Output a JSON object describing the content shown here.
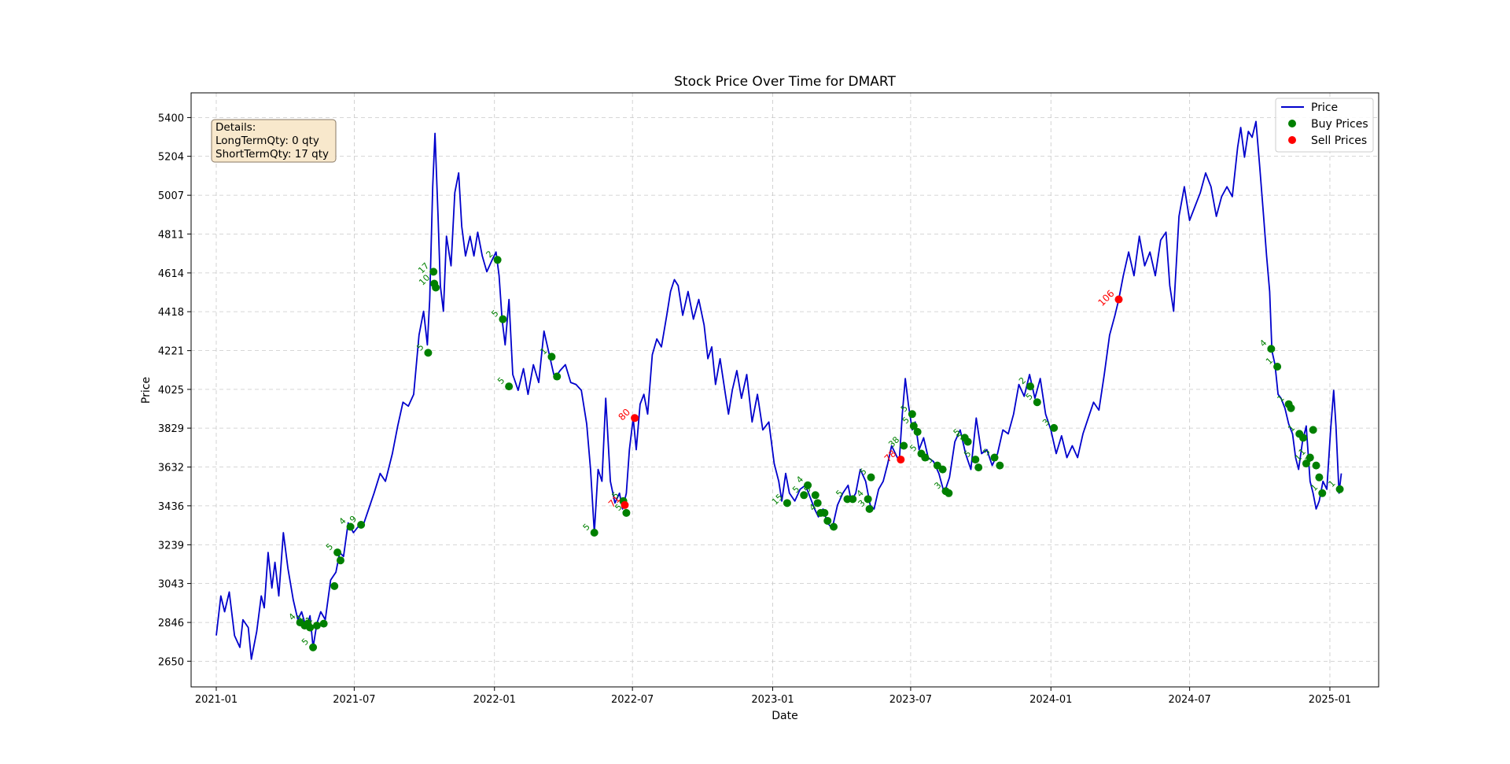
{
  "chart_data": {
    "type": "line",
    "title": "Stock Price Over Time for DMART",
    "xlabel": "Date",
    "ylabel": "Price",
    "x_ticks": [
      "2021-01",
      "2021-07",
      "2022-01",
      "2022-07",
      "2023-01",
      "2023-07",
      "2024-01",
      "2024-07",
      "2025-01"
    ],
    "y_ticks": [
      2650,
      2846,
      3043,
      3239,
      3436,
      3632,
      3829,
      4025,
      4221,
      4418,
      4614,
      4811,
      5007,
      5204,
      5400
    ],
    "xlim": [
      "2020-11-29",
      "2025-03-06"
    ],
    "ylim": [
      2520,
      5525
    ],
    "grid": true,
    "grid_style": "dashed",
    "legend_position": "top-right",
    "legend": [
      {
        "label": "Price",
        "kind": "line",
        "color": "#0000cc"
      },
      {
        "label": "Buy Prices",
        "kind": "marker",
        "color": "#008000"
      },
      {
        "label": "Sell Prices",
        "kind": "marker",
        "color": "#ff0000"
      }
    ],
    "colors": {
      "price_line": "#0000cc",
      "buy": "#008000",
      "sell": "#ff0000",
      "info_box_bg": "#f8e8cc",
      "info_box_border": "#8a7a66"
    },
    "info_box": {
      "heading": "Details:",
      "lines": [
        "LongTermQty: 0 qty",
        "ShortTermQty: 17 qty"
      ]
    },
    "price_series": [
      [
        "2021-01-01",
        2780
      ],
      [
        "2021-01-07",
        2980
      ],
      [
        "2021-01-12",
        2900
      ],
      [
        "2021-01-18",
        3000
      ],
      [
        "2021-01-25",
        2780
      ],
      [
        "2021-02-01",
        2720
      ],
      [
        "2021-02-05",
        2860
      ],
      [
        "2021-02-12",
        2820
      ],
      [
        "2021-02-16",
        2660
      ],
      [
        "2021-02-23",
        2800
      ],
      [
        "2021-03-01",
        2980
      ],
      [
        "2021-03-05",
        2920
      ],
      [
        "2021-03-10",
        3200
      ],
      [
        "2021-03-15",
        3020
      ],
      [
        "2021-03-19",
        3150
      ],
      [
        "2021-03-24",
        2980
      ],
      [
        "2021-03-30",
        3300
      ],
      [
        "2021-04-05",
        3120
      ],
      [
        "2021-04-12",
        2960
      ],
      [
        "2021-04-18",
        2860
      ],
      [
        "2021-04-23",
        2900
      ],
      [
        "2021-04-29",
        2820
      ],
      [
        "2021-05-04",
        2880
      ],
      [
        "2021-05-08",
        2720
      ],
      [
        "2021-05-13",
        2840
      ],
      [
        "2021-05-18",
        2900
      ],
      [
        "2021-05-24",
        2860
      ],
      [
        "2021-05-31",
        3060
      ],
      [
        "2021-06-07",
        3100
      ],
      [
        "2021-06-12",
        3200
      ],
      [
        "2021-06-17",
        3180
      ],
      [
        "2021-06-23",
        3350
      ],
      [
        "2021-06-30",
        3300
      ],
      [
        "2021-07-06",
        3330
      ],
      [
        "2021-07-13",
        3340
      ],
      [
        "2021-07-20",
        3420
      ],
      [
        "2021-07-27",
        3500
      ],
      [
        "2021-08-04",
        3600
      ],
      [
        "2021-08-11",
        3560
      ],
      [
        "2021-08-20",
        3700
      ],
      [
        "2021-08-27",
        3840
      ],
      [
        "2021-09-03",
        3960
      ],
      [
        "2021-09-10",
        3940
      ],
      [
        "2021-09-17",
        4000
      ],
      [
        "2021-09-24",
        4300
      ],
      [
        "2021-09-30",
        4420
      ],
      [
        "2021-10-05",
        4250
      ],
      [
        "2021-10-08",
        4480
      ],
      [
        "2021-10-12",
        5050
      ],
      [
        "2021-10-15",
        5320
      ],
      [
        "2021-10-19",
        4900
      ],
      [
        "2021-10-22",
        4550
      ],
      [
        "2021-10-26",
        4420
      ],
      [
        "2021-10-30",
        4800
      ],
      [
        "2021-11-05",
        4650
      ],
      [
        "2021-11-10",
        5020
      ],
      [
        "2021-11-15",
        5120
      ],
      [
        "2021-11-19",
        4850
      ],
      [
        "2021-11-24",
        4700
      ],
      [
        "2021-11-30",
        4800
      ],
      [
        "2021-12-05",
        4700
      ],
      [
        "2021-12-10",
        4820
      ],
      [
        "2021-12-16",
        4700
      ],
      [
        "2021-12-22",
        4620
      ],
      [
        "2021-12-29",
        4680
      ],
      [
        "2022-01-03",
        4720
      ],
      [
        "2022-01-07",
        4600
      ],
      [
        "2022-01-11",
        4380
      ],
      [
        "2022-01-15",
        4250
      ],
      [
        "2022-01-20",
        4480
      ],
      [
        "2022-01-25",
        4100
      ],
      [
        "2022-02-01",
        4020
      ],
      [
        "2022-02-08",
        4130
      ],
      [
        "2022-02-14",
        4000
      ],
      [
        "2022-02-21",
        4150
      ],
      [
        "2022-02-28",
        4060
      ],
      [
        "2022-03-07",
        4320
      ],
      [
        "2022-03-14",
        4200
      ],
      [
        "2022-03-21",
        4080
      ],
      [
        "2022-03-28",
        4120
      ],
      [
        "2022-04-04",
        4150
      ],
      [
        "2022-04-11",
        4060
      ],
      [
        "2022-04-18",
        4050
      ],
      [
        "2022-04-25",
        4020
      ],
      [
        "2022-05-02",
        3850
      ],
      [
        "2022-05-07",
        3620
      ],
      [
        "2022-05-12",
        3300
      ],
      [
        "2022-05-17",
        3620
      ],
      [
        "2022-05-22",
        3560
      ],
      [
        "2022-05-27",
        3980
      ],
      [
        "2022-06-02",
        3560
      ],
      [
        "2022-06-08",
        3450
      ],
      [
        "2022-06-14",
        3500
      ],
      [
        "2022-06-18",
        3420
      ],
      [
        "2022-06-23",
        3500
      ],
      [
        "2022-06-27",
        3720
      ],
      [
        "2022-07-02",
        3880
      ],
      [
        "2022-07-06",
        3720
      ],
      [
        "2022-07-11",
        3950
      ],
      [
        "2022-07-16",
        4000
      ],
      [
        "2022-07-21",
        3900
      ],
      [
        "2022-07-27",
        4200
      ],
      [
        "2022-08-02",
        4280
      ],
      [
        "2022-08-08",
        4240
      ],
      [
        "2022-08-15",
        4400
      ],
      [
        "2022-08-20",
        4520
      ],
      [
        "2022-08-25",
        4580
      ],
      [
        "2022-08-30",
        4550
      ],
      [
        "2022-09-05",
        4400
      ],
      [
        "2022-09-12",
        4520
      ],
      [
        "2022-09-19",
        4380
      ],
      [
        "2022-09-26",
        4480
      ],
      [
        "2022-10-03",
        4350
      ],
      [
        "2022-10-08",
        4180
      ],
      [
        "2022-10-13",
        4240
      ],
      [
        "2022-10-18",
        4050
      ],
      [
        "2022-10-24",
        4180
      ],
      [
        "2022-10-31",
        4000
      ],
      [
        "2022-11-04",
        3900
      ],
      [
        "2022-11-09",
        4020
      ],
      [
        "2022-11-15",
        4120
      ],
      [
        "2022-11-21",
        3980
      ],
      [
        "2022-11-28",
        4100
      ],
      [
        "2022-12-05",
        3860
      ],
      [
        "2022-12-12",
        4000
      ],
      [
        "2022-12-19",
        3820
      ],
      [
        "2022-12-27",
        3860
      ],
      [
        "2023-01-03",
        3650
      ],
      [
        "2023-01-09",
        3560
      ],
      [
        "2023-01-13",
        3460
      ],
      [
        "2023-01-18",
        3600
      ],
      [
        "2023-01-23",
        3500
      ],
      [
        "2023-01-30",
        3460
      ],
      [
        "2023-02-06",
        3520
      ],
      [
        "2023-02-13",
        3540
      ],
      [
        "2023-02-20",
        3470
      ],
      [
        "2023-02-25",
        3420
      ],
      [
        "2023-03-02",
        3380
      ],
      [
        "2023-03-08",
        3420
      ],
      [
        "2023-03-14",
        3350
      ],
      [
        "2023-03-20",
        3320
      ],
      [
        "2023-03-27",
        3440
      ],
      [
        "2023-04-03",
        3500
      ],
      [
        "2023-04-10",
        3540
      ],
      [
        "2023-04-14",
        3460
      ],
      [
        "2023-04-20",
        3500
      ],
      [
        "2023-04-26",
        3620
      ],
      [
        "2023-05-03",
        3560
      ],
      [
        "2023-05-09",
        3440
      ],
      [
        "2023-05-14",
        3420
      ],
      [
        "2023-05-20",
        3520
      ],
      [
        "2023-05-26",
        3560
      ],
      [
        "2023-06-01",
        3650
      ],
      [
        "2023-06-06",
        3740
      ],
      [
        "2023-06-11",
        3700
      ],
      [
        "2023-06-16",
        3660
      ],
      [
        "2023-06-20",
        3900
      ],
      [
        "2023-06-24",
        4080
      ],
      [
        "2023-06-28",
        3950
      ],
      [
        "2023-07-03",
        3820
      ],
      [
        "2023-07-07",
        3860
      ],
      [
        "2023-07-12",
        3720
      ],
      [
        "2023-07-18",
        3780
      ],
      [
        "2023-07-24",
        3680
      ],
      [
        "2023-07-31",
        3660
      ],
      [
        "2023-08-07",
        3600
      ],
      [
        "2023-08-14",
        3500
      ],
      [
        "2023-08-21",
        3580
      ],
      [
        "2023-08-28",
        3760
      ],
      [
        "2023-09-04",
        3820
      ],
      [
        "2023-09-11",
        3700
      ],
      [
        "2023-09-18",
        3620
      ],
      [
        "2023-09-25",
        3880
      ],
      [
        "2023-10-02",
        3700
      ],
      [
        "2023-10-09",
        3720
      ],
      [
        "2023-10-16",
        3640
      ],
      [
        "2023-10-23",
        3700
      ],
      [
        "2023-10-30",
        3820
      ],
      [
        "2023-11-06",
        3800
      ],
      [
        "2023-11-13",
        3900
      ],
      [
        "2023-11-20",
        4050
      ],
      [
        "2023-11-27",
        3990
      ],
      [
        "2023-12-04",
        4100
      ],
      [
        "2023-12-11",
        3980
      ],
      [
        "2023-12-18",
        4080
      ],
      [
        "2023-12-25",
        3900
      ],
      [
        "2024-01-01",
        3820
      ],
      [
        "2024-01-08",
        3700
      ],
      [
        "2024-01-15",
        3790
      ],
      [
        "2024-01-22",
        3680
      ],
      [
        "2024-01-29",
        3740
      ],
      [
        "2024-02-05",
        3680
      ],
      [
        "2024-02-12",
        3800
      ],
      [
        "2024-02-19",
        3880
      ],
      [
        "2024-02-26",
        3960
      ],
      [
        "2024-03-04",
        3920
      ],
      [
        "2024-03-11",
        4100
      ],
      [
        "2024-03-18",
        4300
      ],
      [
        "2024-03-25",
        4400
      ],
      [
        "2024-03-30",
        4480
      ],
      [
        "2024-04-05",
        4600
      ],
      [
        "2024-04-12",
        4720
      ],
      [
        "2024-04-19",
        4600
      ],
      [
        "2024-04-26",
        4800
      ],
      [
        "2024-05-03",
        4650
      ],
      [
        "2024-05-10",
        4720
      ],
      [
        "2024-05-17",
        4600
      ],
      [
        "2024-05-24",
        4780
      ],
      [
        "2024-05-31",
        4820
      ],
      [
        "2024-06-05",
        4550
      ],
      [
        "2024-06-10",
        4420
      ],
      [
        "2024-06-17",
        4900
      ],
      [
        "2024-06-24",
        5050
      ],
      [
        "2024-07-01",
        4880
      ],
      [
        "2024-07-08",
        4950
      ],
      [
        "2024-07-15",
        5020
      ],
      [
        "2024-07-22",
        5120
      ],
      [
        "2024-07-29",
        5050
      ],
      [
        "2024-08-05",
        4900
      ],
      [
        "2024-08-12",
        5000
      ],
      [
        "2024-08-19",
        5050
      ],
      [
        "2024-08-26",
        5000
      ],
      [
        "2024-09-02",
        5250
      ],
      [
        "2024-09-06",
        5350
      ],
      [
        "2024-09-11",
        5200
      ],
      [
        "2024-09-16",
        5330
      ],
      [
        "2024-09-21",
        5300
      ],
      [
        "2024-09-26",
        5380
      ],
      [
        "2024-10-01",
        5150
      ],
      [
        "2024-10-06",
        4900
      ],
      [
        "2024-10-10",
        4700
      ],
      [
        "2024-10-14",
        4520
      ],
      [
        "2024-10-17",
        4220
      ],
      [
        "2024-10-21",
        4150
      ],
      [
        "2024-10-25",
        4000
      ],
      [
        "2024-10-29",
        3980
      ],
      [
        "2024-11-03",
        3930
      ],
      [
        "2024-11-08",
        3850
      ],
      [
        "2024-11-13",
        3800
      ],
      [
        "2024-11-17",
        3680
      ],
      [
        "2024-11-21",
        3620
      ],
      [
        "2024-11-26",
        3760
      ],
      [
        "2024-12-01",
        3840
      ],
      [
        "2024-12-06",
        3560
      ],
      [
        "2024-12-10",
        3500
      ],
      [
        "2024-12-14",
        3420
      ],
      [
        "2024-12-18",
        3460
      ],
      [
        "2024-12-23",
        3560
      ],
      [
        "2024-12-28",
        3520
      ],
      [
        "2025-01-02",
        3820
      ],
      [
        "2025-01-06",
        4020
      ],
      [
        "2025-01-09",
        3840
      ],
      [
        "2025-01-13",
        3500
      ],
      [
        "2025-01-16",
        3600
      ]
    ],
    "buy_points": [
      [
        "2021-04-21",
        2846,
        "4"
      ],
      [
        "2021-04-27",
        2830,
        ""
      ],
      [
        "2021-05-01",
        2840,
        "1"
      ],
      [
        "2021-05-04",
        2820,
        ""
      ],
      [
        "2021-05-08",
        2720,
        "5"
      ],
      [
        "2021-05-13",
        2830,
        "1"
      ],
      [
        "2021-05-22",
        2840,
        ""
      ],
      [
        "2021-06-05",
        3030,
        ""
      ],
      [
        "2021-06-09",
        3200,
        "5"
      ],
      [
        "2021-06-13",
        3160,
        ""
      ],
      [
        "2021-06-26",
        3330,
        "4"
      ],
      [
        "2021-07-10",
        3340,
        "9"
      ],
      [
        "2021-10-06",
        4210,
        "5"
      ],
      [
        "2021-10-13",
        4620,
        "17"
      ],
      [
        "2021-10-14",
        4560,
        "10"
      ],
      [
        "2021-10-16",
        4540,
        ""
      ],
      [
        "2022-01-05",
        4680,
        "2"
      ],
      [
        "2022-01-12",
        4380,
        "5"
      ],
      [
        "2022-01-20",
        4040,
        "5"
      ],
      [
        "2022-03-17",
        4190,
        "1"
      ],
      [
        "2022-03-24",
        4090,
        ""
      ],
      [
        "2022-05-12",
        3300,
        "5"
      ],
      [
        "2022-06-23",
        3400,
        "5"
      ],
      [
        "2022-06-19",
        3460,
        "5"
      ],
      [
        "2023-01-20",
        3450,
        "15"
      ],
      [
        "2023-02-11",
        3490,
        "5"
      ],
      [
        "2023-02-16",
        3540,
        "4"
      ],
      [
        "2023-02-26",
        3490,
        "5"
      ],
      [
        "2023-03-01",
        3450,
        ""
      ],
      [
        "2023-03-05",
        3400,
        "4"
      ],
      [
        "2023-03-10",
        3400,
        ""
      ],
      [
        "2023-03-14",
        3360,
        ""
      ],
      [
        "2023-03-22",
        3330,
        ""
      ],
      [
        "2023-04-09",
        3470,
        "5"
      ],
      [
        "2023-04-16",
        3470,
        ""
      ],
      [
        "2023-05-06",
        3470,
        "4"
      ],
      [
        "2023-05-08",
        3420,
        "3"
      ],
      [
        "2023-05-10",
        3580,
        "5"
      ],
      [
        "2023-06-22",
        3740,
        "38"
      ],
      [
        "2023-07-03",
        3900,
        "5"
      ],
      [
        "2023-07-05",
        3840,
        "5"
      ],
      [
        "2023-07-10",
        3810,
        ""
      ],
      [
        "2023-07-15",
        3700,
        "5"
      ],
      [
        "2023-07-20",
        3680,
        ""
      ],
      [
        "2023-08-05",
        3640,
        "5"
      ],
      [
        "2023-08-12",
        3620,
        ""
      ],
      [
        "2023-08-16",
        3510,
        "3"
      ],
      [
        "2023-08-20",
        3500,
        ""
      ],
      [
        "2023-09-10",
        3780,
        "5"
      ],
      [
        "2023-09-14",
        3760,
        "5"
      ],
      [
        "2023-09-24",
        3670,
        "5"
      ],
      [
        "2023-09-28",
        3630,
        ""
      ],
      [
        "2023-10-19",
        3680,
        "5"
      ],
      [
        "2023-10-26",
        3640,
        ""
      ],
      [
        "2023-12-05",
        4040,
        "2"
      ],
      [
        "2023-12-14",
        3960,
        "5"
      ],
      [
        "2024-01-05",
        3830,
        "3"
      ],
      [
        "2024-10-16",
        4230,
        "4"
      ],
      [
        "2024-10-24",
        4140,
        "1"
      ],
      [
        "2024-11-08",
        3950,
        "1"
      ],
      [
        "2024-11-11",
        3930,
        ""
      ],
      [
        "2024-11-22",
        3800,
        "1"
      ],
      [
        "2024-11-27",
        3780,
        ""
      ],
      [
        "2024-12-01",
        3650,
        "1"
      ],
      [
        "2024-12-06",
        3680,
        "1"
      ],
      [
        "2024-12-10",
        3820,
        ""
      ],
      [
        "2024-12-14",
        3640,
        "1"
      ],
      [
        "2024-12-18",
        3580,
        ""
      ],
      [
        "2024-12-22",
        3500,
        "1"
      ],
      [
        "2025-01-14",
        3520,
        "1"
      ]
    ],
    "sell_points": [
      [
        "2022-06-21",
        3440,
        "71"
      ],
      [
        "2022-07-04",
        3880,
        "80"
      ],
      [
        "2023-06-18",
        3670,
        "78"
      ],
      [
        "2024-03-30",
        4480,
        "106"
      ]
    ]
  }
}
